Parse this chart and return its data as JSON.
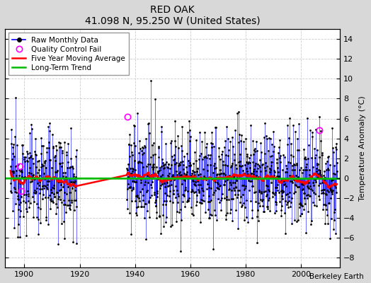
{
  "title": "RED OAK",
  "subtitle": "41.098 N, 95.250 W (United States)",
  "credit": "Berkeley Earth",
  "ylabel": "Temperature Anomaly (°C)",
  "xlim": [
    1893,
    2014
  ],
  "ylim": [
    -9,
    15
  ],
  "yticks": [
    -8,
    -6,
    -4,
    -2,
    0,
    2,
    4,
    6,
    8,
    10,
    12,
    14
  ],
  "xticks": [
    1900,
    1920,
    1940,
    1960,
    1980,
    2000
  ],
  "bg_color": "#d8d8d8",
  "plot_bg": "#ffffff",
  "line_color": "#0000ff",
  "dot_color": "#000000",
  "ma_color": "#ff0000",
  "trend_color": "#00bb00",
  "qc_color": "#ff00ff",
  "seed": 12345,
  "start_year": 1895,
  "end_year": 2012,
  "gap_start_year": 1919,
  "gap_end_year": 1937,
  "noise_std": 2.5,
  "ma_window_years": 5,
  "qc_fails": [
    {
      "year": 1937.3,
      "value": 6.2
    },
    {
      "year": 1898.5,
      "value": 1.2
    },
    {
      "year": 1898.8,
      "value": -1.3
    },
    {
      "year": 2006.5,
      "value": 4.8
    }
  ]
}
